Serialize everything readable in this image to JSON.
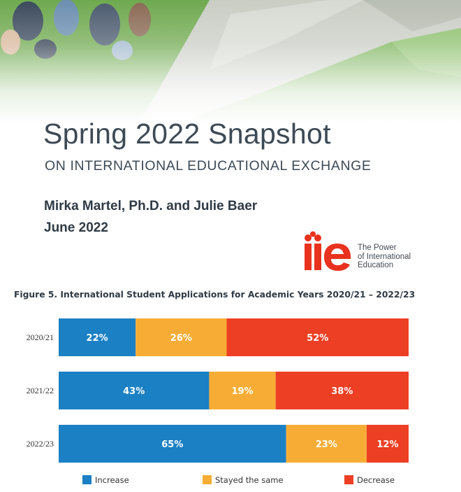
{
  "report": {
    "title": "Spring 2022 Snapshot",
    "subtitle": "ON INTERNATIONAL EDUCATIONAL EXCHANGE",
    "authors": "Mirka Martel, Ph.D. and Julie Baer",
    "date": "June 2022"
  },
  "logo": {
    "mark": "iie",
    "tagline": [
      "The Power",
      "of International",
      "Education"
    ],
    "color": "#e8321e"
  },
  "figure_title": "Figure 5. International Student Applications for Academic Years 2020/21 – 2022/23",
  "colors": {
    "increase": "#1b80c4",
    "same": "#f7ad35",
    "decrease": "#ec3f24"
  },
  "chart_data": {
    "type": "bar",
    "orientation": "horizontal",
    "stacked": true,
    "categories": [
      "2020/21",
      "2021/22",
      "2022/23"
    ],
    "series": [
      {
        "name": "Increase",
        "values": [
          22,
          43,
          65
        ],
        "color": "#1b80c4"
      },
      {
        "name": "Stayed the same",
        "values": [
          26,
          19,
          23
        ],
        "color": "#f7ad35"
      },
      {
        "name": "Decrease",
        "values": [
          52,
          38,
          12
        ],
        "color": "#ec3f24"
      }
    ],
    "value_suffix": "%",
    "xlim": [
      0,
      100
    ],
    "grid": false,
    "legend": "bottom"
  }
}
